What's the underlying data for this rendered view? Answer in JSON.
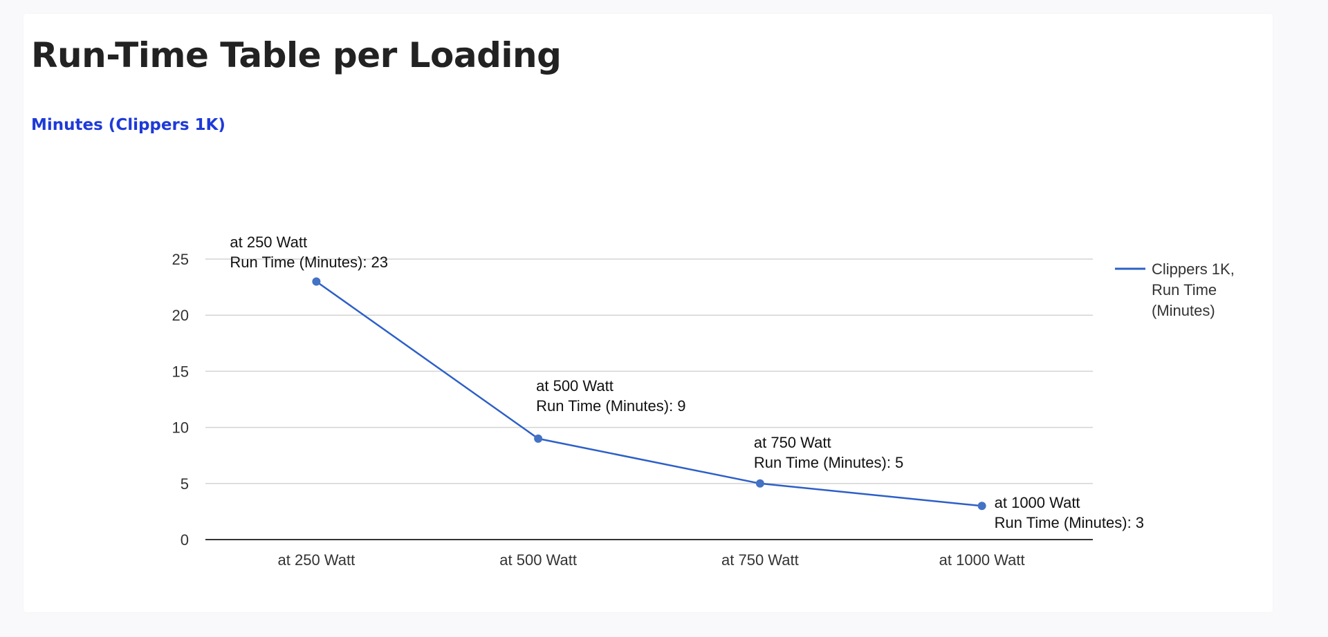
{
  "page": {
    "title": "Run-Time Table per Loading"
  },
  "chart_data": {
    "type": "line",
    "title": "Minutes (Clippers 1K)",
    "xlabel": "",
    "ylabel": "",
    "categories": [
      "at 250 Watt",
      "at 500 Watt",
      "at 750 Watt",
      "at 1000 Watt"
    ],
    "series": [
      {
        "name": "Clippers 1K, Run Time (Minutes)",
        "values": [
          23,
          9,
          5,
          3
        ],
        "color": "#2d5fc8"
      }
    ],
    "data_labels": [
      [
        "at 250 Watt",
        "Run Time (Minutes): 23"
      ],
      [
        "at 500 Watt",
        "Run Time (Minutes): 9"
      ],
      [
        "at 750 Watt",
        "Run Time (Minutes): 5"
      ],
      [
        "at 1000 Watt",
        "Run Time (Minutes): 3"
      ]
    ],
    "yticks": [
      0,
      5,
      10,
      15,
      20,
      25
    ],
    "ylim": [
      0,
      25
    ],
    "grid": true,
    "legend": {
      "position": "right",
      "lines": [
        "Clippers 1K,",
        "Run Time",
        "(Minutes)"
      ]
    }
  }
}
